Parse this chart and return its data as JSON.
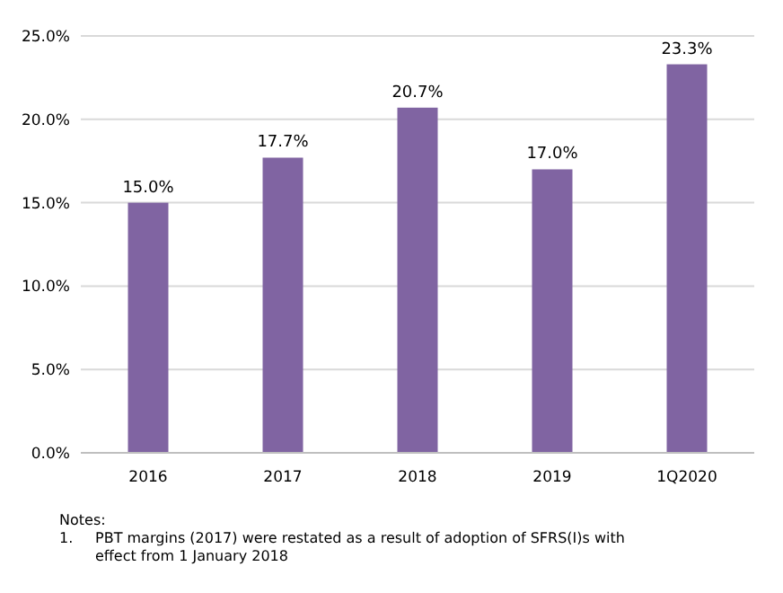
{
  "chart_data": {
    "type": "bar",
    "categories": [
      "2016",
      "2017",
      "2018",
      "2019",
      "1Q2020"
    ],
    "values": [
      15.0,
      17.7,
      20.7,
      17.0,
      23.3
    ],
    "value_labels": [
      "15.0%",
      "17.7%",
      "20.7%",
      "17.0%",
      "23.3%"
    ],
    "color": "#8064a2",
    "ylim": [
      0,
      25
    ],
    "yticks": [
      {
        "value": 0,
        "label": "0.0%"
      },
      {
        "value": 5,
        "label": "5.0%"
      },
      {
        "value": 10,
        "label": "10.0%"
      },
      {
        "value": 15,
        "label": "15.0%"
      },
      {
        "value": 20,
        "label": "20.0%"
      },
      {
        "value": 25,
        "label": "25.0%"
      }
    ],
    "grid": "y",
    "annotations": [
      "Notes:",
      "1.    PBT margins (2017) were restated as a result of adoption of SFRS(I)s with effect from 1 January 2018"
    ]
  }
}
